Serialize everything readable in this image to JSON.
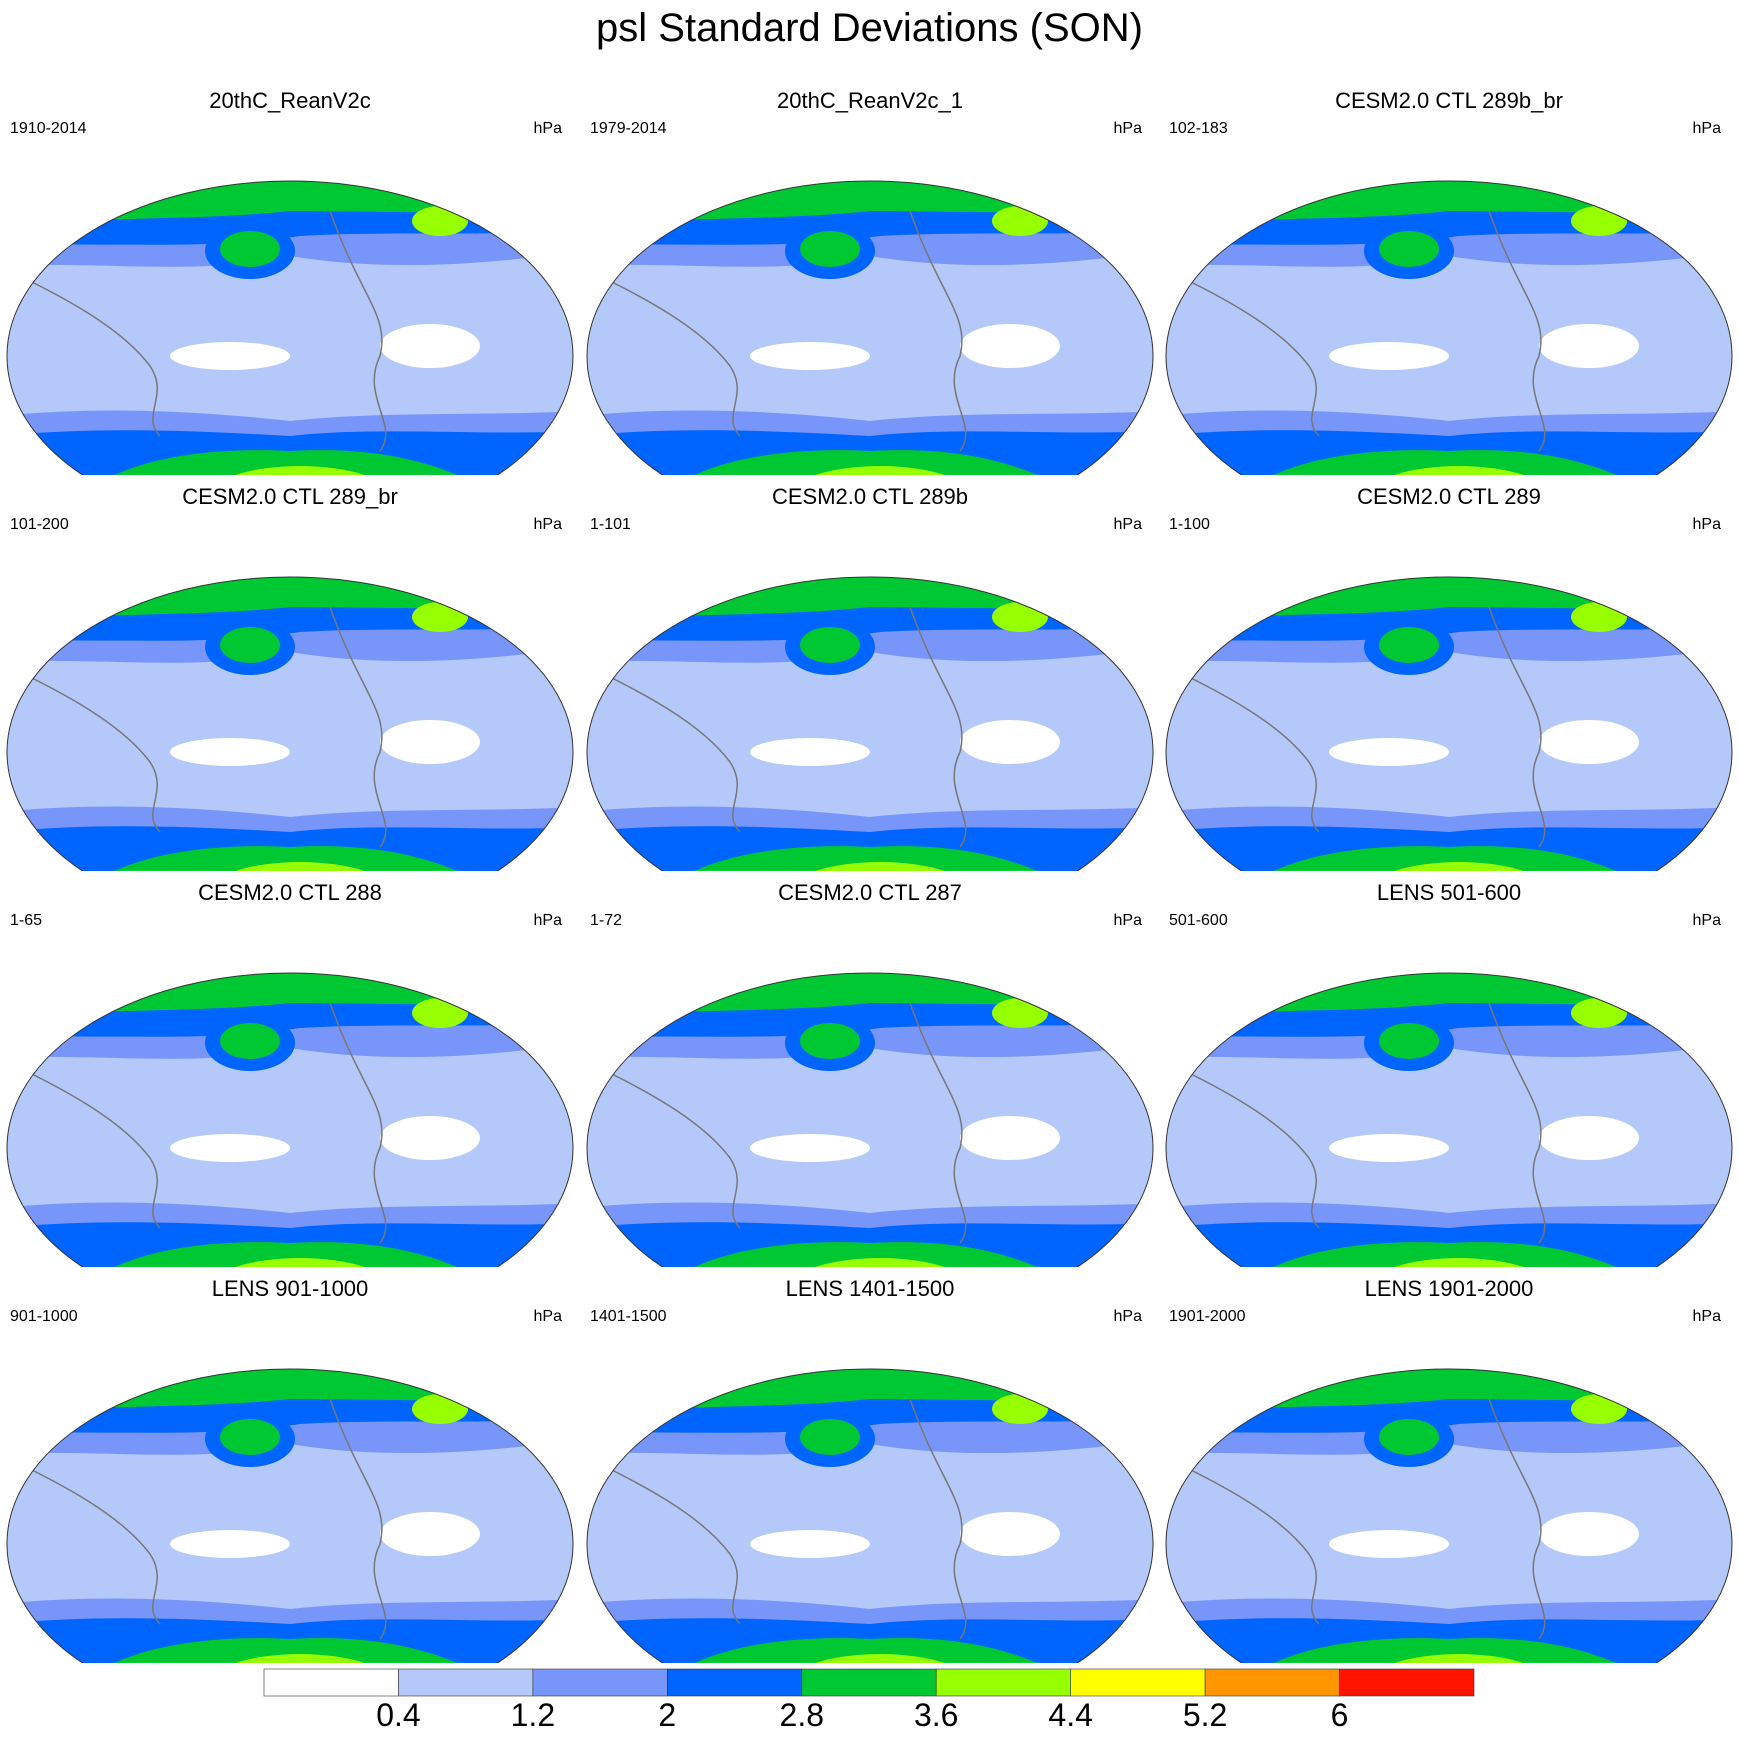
{
  "title": "psl Standard Deviations (SON)",
  "units": "hPa",
  "panels": [
    {
      "title": "20thC_ReanV2c",
      "period": "1910-2014",
      "units": "hPa"
    },
    {
      "title": "20thC_ReanV2c_1",
      "period": "1979-2014",
      "units": "hPa"
    },
    {
      "title": "CESM2.0 CTL 289b_br",
      "period": "102-183",
      "units": "hPa"
    },
    {
      "title": "CESM2.0 CTL 289_br",
      "period": "101-200",
      "units": "hPa"
    },
    {
      "title": "CESM2.0 CTL 289b",
      "period": "1-101",
      "units": "hPa"
    },
    {
      "title": "CESM2.0 CTL 289",
      "period": "1-100",
      "units": "hPa"
    },
    {
      "title": "CESM2.0 CTL 288",
      "period": "1-65",
      "units": "hPa"
    },
    {
      "title": "CESM2.0 CTL 287",
      "period": "1-72",
      "units": "hPa"
    },
    {
      "title": "LENS 501-600",
      "period": "501-600",
      "units": "hPa"
    },
    {
      "title": "LENS 901-1000",
      "period": "901-1000",
      "units": "hPa"
    },
    {
      "title": "LENS 1401-1500",
      "period": "1401-1500",
      "units": "hPa"
    },
    {
      "title": "LENS 1901-2000",
      "period": "1901-2000",
      "units": "hPa"
    }
  ],
  "colorbar": {
    "levels": [
      "0.4",
      "1.2",
      "2",
      "2.8",
      "3.6",
      "4.4",
      "5.2",
      "6"
    ],
    "colors": [
      "#ffffff",
      "#b4c8fa",
      "#7896fa",
      "#0064ff",
      "#00c832",
      "#96ff00",
      "#ffff00",
      "#ff9600",
      "#ff1400"
    ]
  },
  "colors": {
    "coastline": "#777777",
    "map_outline": "#333333"
  }
}
